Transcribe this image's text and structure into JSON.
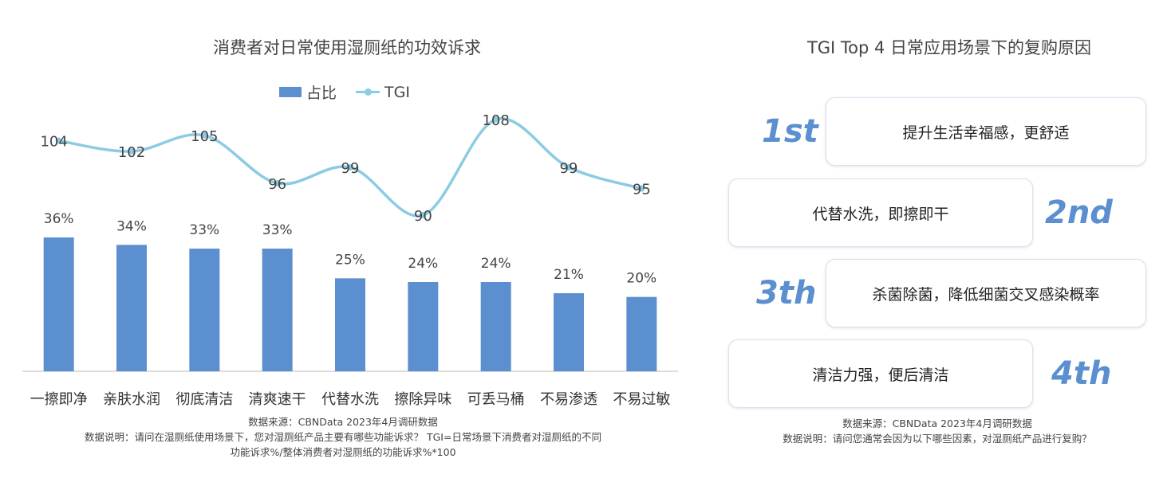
{
  "left_panel": {
    "title": "消费者对日常使用湿厕纸的功效诉求",
    "legend": {
      "bar": "占比",
      "line": "TGI"
    },
    "source": "数据来源：CBNData 2023年4月调研数据",
    "note_line1": "数据说明：请问在湿厕纸使用场景下，您对湿厕纸产品主要有哪些功能诉求？ TGI=日常场景下消费者对湿厕纸的不同",
    "note_line2": "功能诉求%/整体消费者对湿厕纸的功能诉求%*100"
  },
  "chart_data": {
    "type": "bar",
    "title": "消费者对日常使用湿厕纸的功效诉求",
    "categories": [
      "一擦即净",
      "亲肤水润",
      "彻底清洁",
      "清爽速干",
      "代替水洗",
      "擦除异味",
      "可丢马桶",
      "不易渗透",
      "不易过敏"
    ],
    "series": [
      {
        "name": "占比",
        "type": "bar",
        "values": [
          36,
          34,
          33,
          33,
          25,
          24,
          24,
          21,
          20
        ],
        "labels": [
          "36%",
          "34%",
          "33%",
          "33%",
          "25%",
          "24%",
          "24%",
          "21%",
          "20%"
        ],
        "color": "#5b8fcf"
      },
      {
        "name": "TGI",
        "type": "line",
        "smooth": true,
        "values": [
          104,
          102,
          105,
          96,
          99,
          90,
          108,
          99,
          95
        ],
        "color": "#8ccbe4"
      }
    ],
    "bar_ylim": [
      0,
      36
    ],
    "line_ylim": [
      90,
      108
    ],
    "legend_position": "top-center",
    "grid": false
  },
  "right_panel": {
    "title": "TGI Top 4 日常应用场景下的复购原因",
    "items": [
      {
        "rank": "1st",
        "text": "提升生活幸福感，更舒适"
      },
      {
        "rank": "2nd",
        "text": "代替水洗，即擦即干"
      },
      {
        "rank": "3th",
        "text": "杀菌除菌，降低细菌交叉感染概率"
      },
      {
        "rank": "4th",
        "text": "清洁力强，便后清洁"
      }
    ],
    "source": "数据来源：CBNData 2023年4月调研数据",
    "note": "数据说明：请问您通常会因为以下哪些因素，对湿厕纸产品进行复购？",
    "accent_color": "#5b8fcf"
  }
}
